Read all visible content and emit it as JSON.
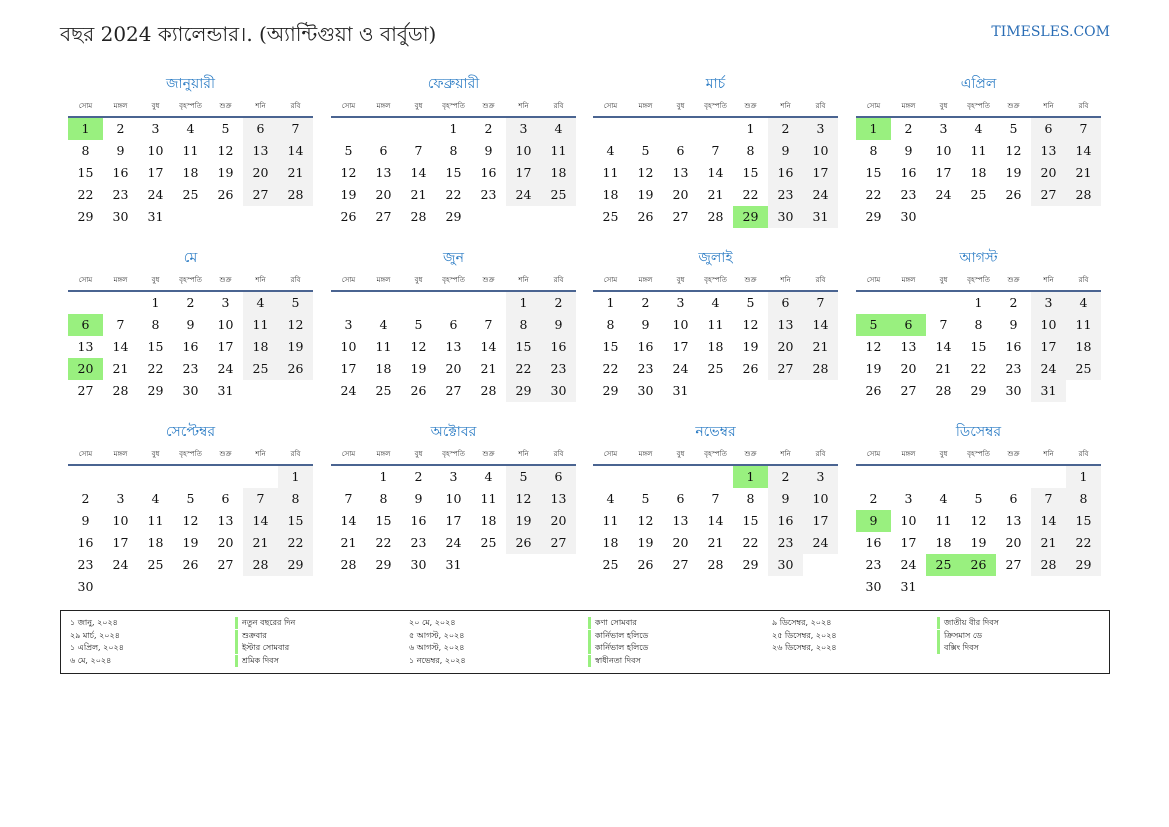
{
  "header": {
    "title": "বছর 2024 ক্যালেন্ডার।. (অ্যান্টিগুয়া ও বার্বুডা)",
    "site": "TIMESLES.COM"
  },
  "colors": {
    "holiday": "#99f07f",
    "weekend": "#f2f2f2",
    "month_title": "#2a7bc4"
  },
  "weekdays": [
    "সোম",
    "মঙ্গল",
    "বুধ",
    "বৃহস্পতি",
    "শুক্র",
    "শনি",
    "রবি"
  ],
  "months": [
    {
      "name": "জানুয়ারী",
      "weeks": [
        [
          1,
          2,
          3,
          4,
          5,
          6,
          7
        ],
        [
          8,
          9,
          10,
          11,
          12,
          13,
          14
        ],
        [
          15,
          16,
          17,
          18,
          19,
          20,
          21
        ],
        [
          22,
          23,
          24,
          25,
          26,
          27,
          28
        ],
        [
          29,
          30,
          31
        ]
      ],
      "holidays": [
        1
      ]
    },
    {
      "name": "ফেব্রুয়ারী",
      "weeks": [
        [
          null,
          null,
          null,
          1,
          2,
          3,
          4
        ],
        [
          5,
          6,
          7,
          8,
          9,
          10,
          11
        ],
        [
          12,
          13,
          14,
          15,
          16,
          17,
          18
        ],
        [
          19,
          20,
          21,
          22,
          23,
          24,
          25
        ],
        [
          26,
          27,
          28,
          29
        ]
      ],
      "holidays": []
    },
    {
      "name": "মার্চ",
      "weeks": [
        [
          null,
          null,
          null,
          null,
          1,
          2,
          3
        ],
        [
          4,
          5,
          6,
          7,
          8,
          9,
          10
        ],
        [
          11,
          12,
          13,
          14,
          15,
          16,
          17
        ],
        [
          18,
          19,
          20,
          21,
          22,
          23,
          24
        ],
        [
          25,
          26,
          27,
          28,
          29,
          30,
          31
        ]
      ],
      "holidays": [
        29
      ]
    },
    {
      "name": "এপ্রিল",
      "weeks": [
        [
          1,
          2,
          3,
          4,
          5,
          6,
          7
        ],
        [
          8,
          9,
          10,
          11,
          12,
          13,
          14
        ],
        [
          15,
          16,
          17,
          18,
          19,
          20,
          21
        ],
        [
          22,
          23,
          24,
          25,
          26,
          27,
          28
        ],
        [
          29,
          30
        ]
      ],
      "holidays": [
        1
      ]
    },
    {
      "name": "মে",
      "weeks": [
        [
          null,
          null,
          1,
          2,
          3,
          4,
          5
        ],
        [
          6,
          7,
          8,
          9,
          10,
          11,
          12
        ],
        [
          13,
          14,
          15,
          16,
          17,
          18,
          19
        ],
        [
          20,
          21,
          22,
          23,
          24,
          25,
          26
        ],
        [
          27,
          28,
          29,
          30,
          31
        ]
      ],
      "holidays": [
        6,
        20
      ]
    },
    {
      "name": "জুন",
      "weeks": [
        [
          null,
          null,
          null,
          null,
          null,
          1,
          2
        ],
        [
          3,
          4,
          5,
          6,
          7,
          8,
          9
        ],
        [
          10,
          11,
          12,
          13,
          14,
          15,
          16
        ],
        [
          17,
          18,
          19,
          20,
          21,
          22,
          23
        ],
        [
          24,
          25,
          26,
          27,
          28,
          29,
          30
        ]
      ],
      "holidays": []
    },
    {
      "name": "জুলাই",
      "weeks": [
        [
          1,
          2,
          3,
          4,
          5,
          6,
          7
        ],
        [
          8,
          9,
          10,
          11,
          12,
          13,
          14
        ],
        [
          15,
          16,
          17,
          18,
          19,
          20,
          21
        ],
        [
          22,
          23,
          24,
          25,
          26,
          27,
          28
        ],
        [
          29,
          30,
          31
        ]
      ],
      "holidays": []
    },
    {
      "name": "আগস্ট",
      "weeks": [
        [
          null,
          null,
          null,
          1,
          2,
          3,
          4
        ],
        [
          5,
          6,
          7,
          8,
          9,
          10,
          11
        ],
        [
          12,
          13,
          14,
          15,
          16,
          17,
          18
        ],
        [
          19,
          20,
          21,
          22,
          23,
          24,
          25
        ],
        [
          26,
          27,
          28,
          29,
          30,
          31
        ]
      ],
      "holidays": [
        5,
        6
      ]
    },
    {
      "name": "সেপ্টেম্বর",
      "weeks": [
        [
          null,
          null,
          null,
          null,
          null,
          null,
          1
        ],
        [
          2,
          3,
          4,
          5,
          6,
          7,
          8
        ],
        [
          9,
          10,
          11,
          12,
          13,
          14,
          15
        ],
        [
          16,
          17,
          18,
          19,
          20,
          21,
          22
        ],
        [
          23,
          24,
          25,
          26,
          27,
          28,
          29
        ],
        [
          30
        ]
      ],
      "holidays": []
    },
    {
      "name": "অক্টোবর",
      "weeks": [
        [
          null,
          1,
          2,
          3,
          4,
          5,
          6
        ],
        [
          7,
          8,
          9,
          10,
          11,
          12,
          13
        ],
        [
          14,
          15,
          16,
          17,
          18,
          19,
          20
        ],
        [
          21,
          22,
          23,
          24,
          25,
          26,
          27
        ],
        [
          28,
          29,
          30,
          31
        ]
      ],
      "holidays": []
    },
    {
      "name": "নভেম্বর",
      "weeks": [
        [
          null,
          null,
          null,
          null,
          1,
          2,
          3
        ],
        [
          4,
          5,
          6,
          7,
          8,
          9,
          10
        ],
        [
          11,
          12,
          13,
          14,
          15,
          16,
          17
        ],
        [
          18,
          19,
          20,
          21,
          22,
          23,
          24
        ],
        [
          25,
          26,
          27,
          28,
          29,
          30
        ]
      ],
      "holidays": [
        1
      ]
    },
    {
      "name": "ডিসেম্বর",
      "weeks": [
        [
          null,
          null,
          null,
          null,
          null,
          null,
          1
        ],
        [
          2,
          3,
          4,
          5,
          6,
          7,
          8
        ],
        [
          9,
          10,
          11,
          12,
          13,
          14,
          15
        ],
        [
          16,
          17,
          18,
          19,
          20,
          21,
          22
        ],
        [
          23,
          24,
          25,
          26,
          27,
          28,
          29
        ],
        [
          30,
          31
        ]
      ],
      "holidays": [
        9,
        25,
        26
      ]
    }
  ],
  "legend": [
    {
      "date": "১ জানু, ২০২৪",
      "name": "নতুন বছরের দিন"
    },
    {
      "date": "২৯ মার্চ, ২০২৪",
      "name": "শুক্রবার"
    },
    {
      "date": "১ এপ্রিল, ২০২৪",
      "name": "ইস্টার সোমবার"
    },
    {
      "date": "৬ মে, ২০২৪",
      "name": "শ্রমিক দিবস"
    },
    {
      "date": "২০ মে, ২০২৪",
      "name": "কণা সোমবার"
    },
    {
      "date": "৫ আগস্ট, ২০২৪",
      "name": "কার্নিভাল হলিডে"
    },
    {
      "date": "৬ আগস্ট, ২০২৪",
      "name": "কার্নিভাল হলিডে"
    },
    {
      "date": "১ নভেম্বর, ২০২৪",
      "name": "স্বাধীনতা দিবস"
    },
    {
      "date": "৯ ডিসেম্বর, ২০২৪",
      "name": "জাতীয় বীর দিবস"
    },
    {
      "date": "২৫ ডিসেম্বর, ২০২৪",
      "name": "ক্রিসমাস ডে"
    },
    {
      "date": "২৬ ডিসেম্বর, ২০২৪",
      "name": "বক্সিং দিবস"
    }
  ]
}
